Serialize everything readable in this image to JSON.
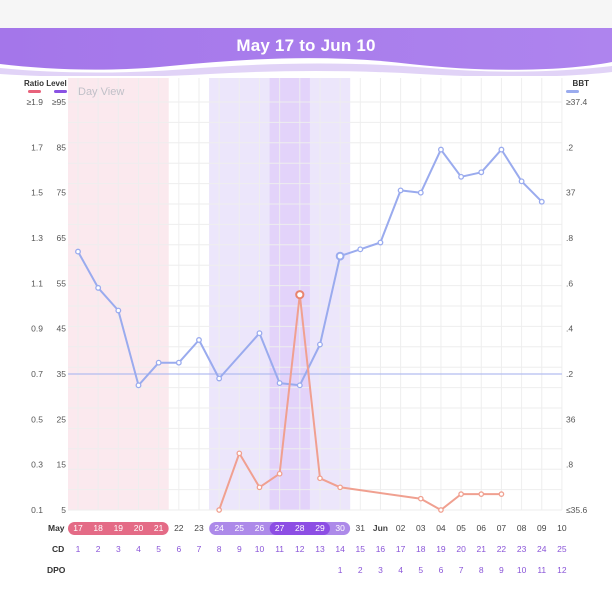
{
  "header": {
    "range_start": "May 17",
    "range_sep": "to",
    "range_end": "Jun 10"
  },
  "colors": {
    "banner": "#a77bea",
    "ratio_line": "#f0a090",
    "bbt_line": "#9aabee",
    "period_band": "#fbe9ee",
    "period_chip": "#e46b86",
    "fertile_band": "#ece6fb",
    "fertile_chip": "#ad8ae9",
    "peak_band": "#e3d3fa",
    "peak_chip": "#8d4ee4",
    "purple_text": "#8a55d8"
  },
  "chart_data": {
    "type": "line",
    "legend": {
      "ratio_label": "Ratio Level",
      "bbt_label": "BBT"
    },
    "day_view_label": "Day View",
    "left_axis_ratio": {
      "ticks": [
        "≥1.9",
        "1.7",
        "1.5",
        "1.3",
        "1.1",
        "0.9",
        "0.7",
        "0.5",
        "0.3",
        "0.1"
      ],
      "range": [
        0.1,
        1.9
      ]
    },
    "left_axis_level": {
      "ticks": [
        "≥95",
        "85",
        "75",
        "65",
        "55",
        "45",
        "35",
        "25",
        "15",
        "5"
      ],
      "range": [
        5,
        95
      ]
    },
    "right_axis_bbt": {
      "ticks": [
        "≥37.4",
        ".2",
        "37",
        ".8",
        ".6",
        ".4",
        ".2",
        "36",
        ".8",
        "≤35.6"
      ],
      "range": [
        35.6,
        37.4
      ]
    },
    "baseline_level": 35,
    "x_axis": {
      "month_label_start": "May",
      "month_label_mid": "Jun",
      "dates": [
        "17",
        "18",
        "19",
        "20",
        "21",
        "22",
        "23",
        "24",
        "25",
        "26",
        "27",
        "28",
        "29",
        "30",
        "31",
        "Jun",
        "02",
        "03",
        "04",
        "05",
        "06",
        "07",
        "08",
        "09",
        "10"
      ]
    },
    "cd_label": "CD",
    "cd": [
      "1",
      "2",
      "3",
      "4",
      "5",
      "6",
      "7",
      "8",
      "9",
      "10",
      "11",
      "12",
      "13",
      "14",
      "15",
      "16",
      "17",
      "18",
      "19",
      "20",
      "21",
      "22",
      "23",
      "24",
      "25"
    ],
    "dpo_label": "DPO",
    "dpo": [
      "",
      "",
      "",
      "",
      "",
      "",
      "",
      "",
      "",
      "",
      "",
      "",
      "",
      "1",
      "2",
      "3",
      "4",
      "5",
      "6",
      "7",
      "8",
      "9",
      "10",
      "11",
      "12"
    ],
    "period_days": [
      0,
      4
    ],
    "fertile_days": [
      7,
      12
    ],
    "peak_days": [
      10,
      11
    ],
    "highlight_day": 11,
    "series": [
      {
        "name": "BBT",
        "axis": "bbt",
        "values": [
          36.74,
          36.58,
          36.48,
          36.15,
          36.25,
          36.25,
          36.35,
          36.18,
          null,
          36.38,
          36.16,
          36.15,
          36.33,
          36.72,
          36.75,
          36.78,
          37.01,
          37.0,
          37.19,
          37.07,
          37.09,
          37.19,
          37.05,
          36.96,
          null
        ],
        "hollow_points": [
          13
        ]
      },
      {
        "name": "Ratio Level",
        "axis": "ratio",
        "values": [
          null,
          null,
          null,
          null,
          null,
          null,
          null,
          0.1,
          0.35,
          0.2,
          0.26,
          1.05,
          0.24,
          0.2,
          null,
          null,
          null,
          0.15,
          0.1,
          0.17,
          0.17,
          0.17,
          null,
          null,
          null
        ],
        "big_point": 11
      }
    ]
  }
}
